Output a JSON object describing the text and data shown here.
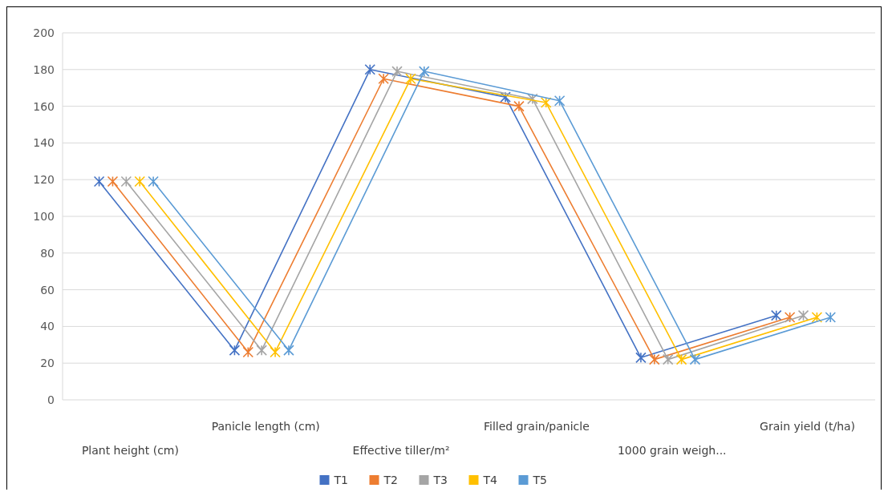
{
  "chart_data": {
    "type": "line",
    "categories": [
      "Plant height (cm)",
      "Panicle length (cm)",
      "Effective tiller/m²",
      "Filled grain/panicle",
      "1000 grain weigh...",
      "Grain yield (t/ha)"
    ],
    "series": [
      {
        "name": "T1",
        "color": "#4472c4",
        "values": [
          119,
          27,
          180,
          165,
          23,
          46
        ]
      },
      {
        "name": "T2",
        "color": "#ed7d31",
        "values": [
          119,
          26,
          175,
          160,
          22,
          45
        ]
      },
      {
        "name": "T3",
        "color": "#a5a5a5",
        "values": [
          119,
          27,
          179,
          164,
          22,
          46
        ]
      },
      {
        "name": "T4",
        "color": "#ffc000",
        "values": [
          119,
          26,
          175,
          162,
          22,
          45
        ]
      },
      {
        "name": "T5",
        "color": "#5b9bd5",
        "values": [
          119,
          27,
          179,
          163,
          22,
          45
        ]
      }
    ],
    "ylim": [
      0,
      200
    ],
    "yticks": [
      0,
      20,
      40,
      60,
      80,
      100,
      120,
      140,
      160,
      180,
      200
    ],
    "grid": "y",
    "legend": "bottom",
    "marker": "cross",
    "line_style": "solid"
  }
}
